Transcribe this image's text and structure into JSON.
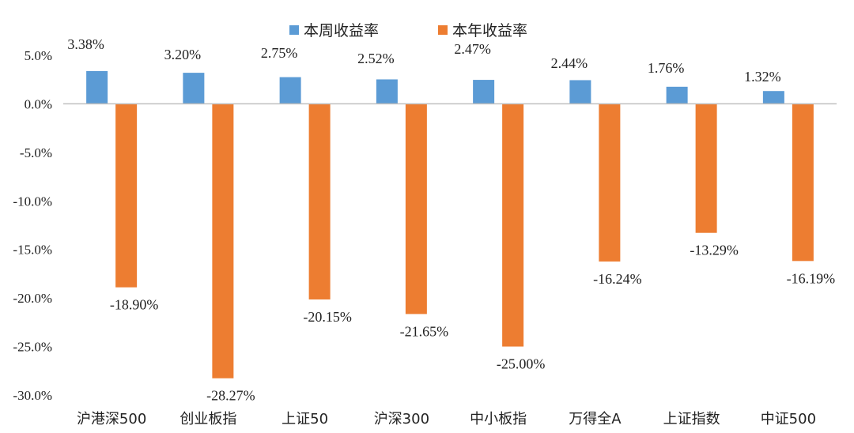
{
  "chart_data": {
    "type": "bar",
    "categories": [
      "沪港深500",
      "创业板指",
      "上证50",
      "沪深300",
      "中小板指",
      "万得全A",
      "上证指数",
      "中证500"
    ],
    "series": [
      {
        "name": "本周收益率",
        "color": "#5B9BD5",
        "values": [
          3.38,
          3.2,
          2.75,
          2.52,
          2.47,
          2.44,
          1.76,
          1.32
        ],
        "labels": [
          "3.38%",
          "3.20%",
          "2.75%",
          "2.52%",
          "2.47%",
          "2.44%",
          "1.76%",
          "1.32%"
        ]
      },
      {
        "name": "本年收益率",
        "color": "#ED7D31",
        "values": [
          -18.9,
          -28.27,
          -20.15,
          -21.65,
          -25.0,
          -16.24,
          -13.29,
          -16.19
        ],
        "labels": [
          "-18.90%",
          "-28.27%",
          "-20.15%",
          "-21.65%",
          "-25.00%",
          "-16.24%",
          "-13.29%",
          "-16.19%"
        ]
      }
    ],
    "yticks": [
      "5.0%",
      "0.0%",
      "-5.0%",
      "-10.0%",
      "-15.0%",
      "-20.0%",
      "-25.0%",
      "-30.0%"
    ],
    "ylim": [
      -30,
      5
    ],
    "legend_position": "top-center",
    "grid": false
  }
}
